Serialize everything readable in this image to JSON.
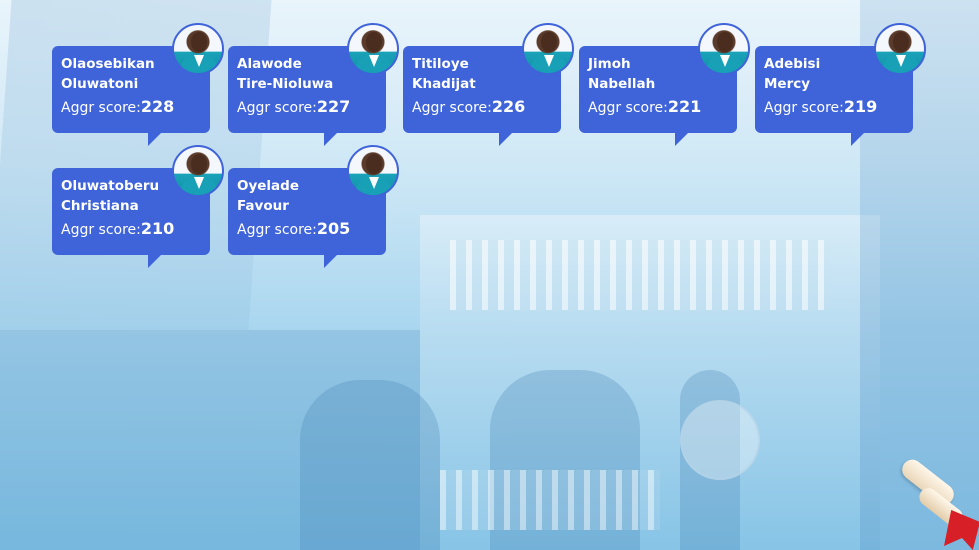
{
  "students": [
    {
      "first": "Olaosebikan",
      "last": "Oluwatoni",
      "score_label": "Aggr score:",
      "score": "228"
    },
    {
      "first": "Alawode",
      "last": "Tire-Nioluwa",
      "score_label": "Aggr score:",
      "score": "227"
    },
    {
      "first": "Titiloye",
      "last": "Khadijat",
      "score_label": "Aggr score:",
      "score": "226"
    },
    {
      "first": "Jimoh",
      "last": "Nabellah",
      "score_label": "Aggr score:",
      "score": "221"
    },
    {
      "first": "Adebisi",
      "last": "Mercy",
      "score_label": "Aggr score:",
      "score": "219"
    },
    {
      "first": "Oluwatoberu",
      "last": "Christiana",
      "score_label": "Aggr score:",
      "score": "210"
    },
    {
      "first": "Oyelade",
      "last": "Favour",
      "score_label": "Aggr score:",
      "score": "205"
    }
  ],
  "colors": {
    "card": "#3f63d9",
    "text": "#ffffff",
    "uniform": "#17a0b6"
  }
}
